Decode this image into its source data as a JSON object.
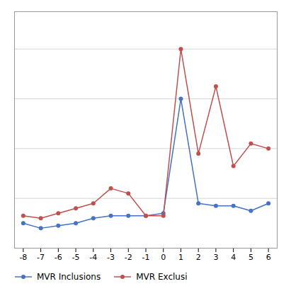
{
  "chart_data": {
    "type": "line",
    "x": [
      -8,
      -7,
      -6,
      -5,
      -4,
      -3,
      -2,
      -1,
      0,
      1,
      2,
      3,
      4,
      5,
      6
    ],
    "series": [
      {
        "name": "MVR Inclusions",
        "color": "#4472C4",
        "marker": "circle",
        "values": [
          0.001,
          0.0008,
          0.0009,
          0.001,
          0.0012,
          0.0013,
          0.0013,
          0.0013,
          0.0014,
          0.006,
          0.0018,
          0.0017,
          0.0017,
          0.0015,
          0.0018
        ]
      },
      {
        "name": "MVR Exclusi",
        "color": "#C0504D",
        "marker": "circle",
        "values": [
          0.0013,
          0.0012,
          0.0014,
          0.0016,
          0.0018,
          0.0024,
          0.0022,
          0.0013,
          0.0013,
          0.008,
          0.0038,
          0.0065,
          0.0033,
          0.0042,
          0.004
        ]
      }
    ],
    "xlim": [
      -8.5,
      6.5
    ],
    "xticks": [
      -8,
      -7,
      -6,
      -5,
      -4,
      -3,
      -2,
      -1,
      0,
      1,
      2,
      3,
      4,
      5,
      6
    ],
    "ylim": [
      0.0,
      0.0095
    ],
    "yticks": [
      0,
      0.002,
      0.004,
      0.006,
      0.008
    ],
    "grid": true,
    "tick_labels": "x",
    "legend": "bottom"
  }
}
